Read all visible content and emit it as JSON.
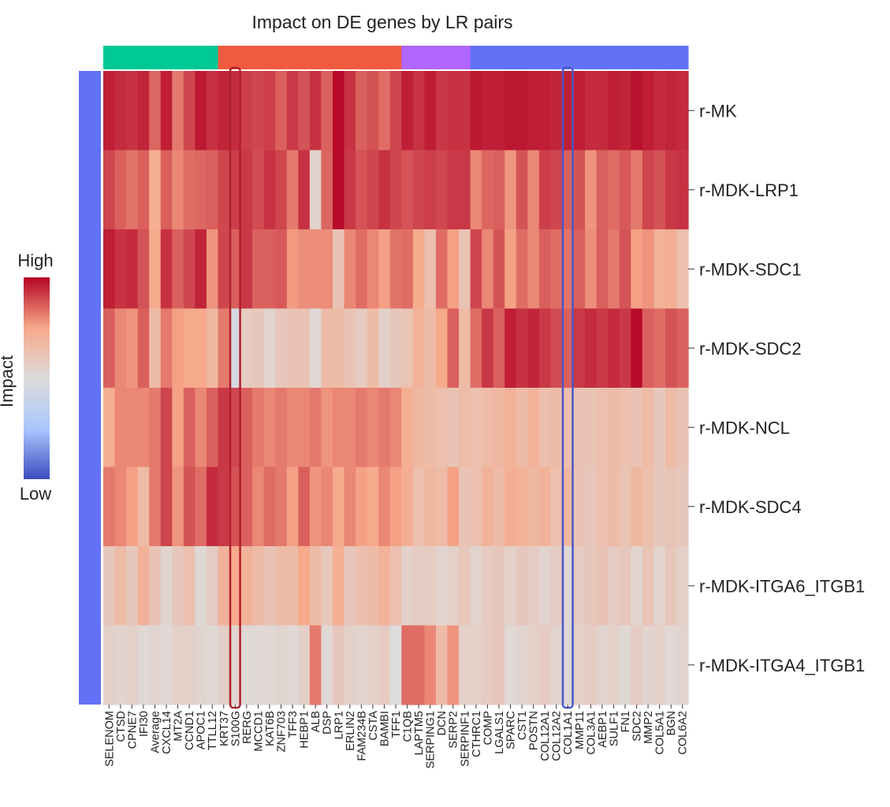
{
  "chart_data": {
    "type": "heatmap",
    "title": "Impact on DE genes by LR pairs",
    "colorbar": {
      "label": "Impact",
      "high_label": "High",
      "low_label": "Low",
      "colors": [
        "#3b4cc0",
        "#aac7fd",
        "#dddcdc",
        "#f7a889",
        "#b40426"
      ]
    },
    "value_range": [
      0,
      1
    ],
    "rows": [
      "r-MK",
      "r-MDK-LRP1",
      "r-MDK-SDC1",
      "r-MDK-SDC2",
      "r-MDK-NCL",
      "r-MDK-SDC4",
      "r-MDK-ITGA6_ITGB1",
      "r-MDK-ITGA4_ITGB1"
    ],
    "row_group_color": "#6272f7",
    "columns": [
      "SELENOM",
      "CTSD",
      "CPNE7",
      "IFI30",
      "Average",
      "CXCL14",
      "MT2A",
      "CCND1",
      "APOC1",
      "TTLL12",
      "KRT37",
      "S100G",
      "RERG",
      "MCCD1",
      "KAT6B",
      "ZNF703",
      "TFF3",
      "HEBP1",
      "ALB",
      "DSP",
      "LRP1",
      "ERLIN2",
      "FAM234B",
      "CSTA",
      "BAMBI",
      "TFF1",
      "C1QB",
      "LAPTM5",
      "SERPING1",
      "DCN",
      "SERP2",
      "SERPINF1",
      "CTHRC1",
      "COMP",
      "LGALS1",
      "SPARC",
      "CST1",
      "POSTN",
      "COL12A1",
      "COL12A2",
      "COL1A1",
      "MMP11",
      "COL3A1",
      "AEBP1",
      "SULF1",
      "FN1",
      "SDC2",
      "MMP2",
      "COL5A1",
      "BGN",
      "COL6A2"
    ],
    "column_groups": [
      {
        "color": "#00c896",
        "start": 0,
        "count": 10
      },
      {
        "color": "#f05b3f",
        "start": 10,
        "count": 16
      },
      {
        "color": "#b066ff",
        "start": 26,
        "count": 6
      },
      {
        "color": "#6272f7",
        "start": 32,
        "count": 19
      }
    ],
    "highlights": [
      {
        "column": "S100G",
        "color": "#b0202a"
      },
      {
        "column": "COL1A1",
        "color": "#4a56c8"
      }
    ],
    "values": [
      [
        0.96,
        0.94,
        0.93,
        0.95,
        0.85,
        0.96,
        0.82,
        0.9,
        0.97,
        0.93,
        0.95,
        0.94,
        0.91,
        0.9,
        0.91,
        0.86,
        0.92,
        0.88,
        0.93,
        0.86,
        0.99,
        0.93,
        0.86,
        0.88,
        0.84,
        0.9,
        0.96,
        0.93,
        0.96,
        0.92,
        0.93,
        0.93,
        0.97,
        0.96,
        0.96,
        0.97,
        0.97,
        0.96,
        0.96,
        0.95,
        0.96,
        0.96,
        0.94,
        0.94,
        0.96,
        0.95,
        0.98,
        0.96,
        0.94,
        0.95,
        0.94
      ],
      [
        0.9,
        0.86,
        0.83,
        0.86,
        0.72,
        0.86,
        0.8,
        0.84,
        0.85,
        0.86,
        0.9,
        0.91,
        0.92,
        0.89,
        0.93,
        0.9,
        0.82,
        0.93,
        0.55,
        0.85,
        0.99,
        0.92,
        0.88,
        0.9,
        0.93,
        0.9,
        0.88,
        0.9,
        0.91,
        0.9,
        0.92,
        0.92,
        0.8,
        0.85,
        0.86,
        0.78,
        0.88,
        0.8,
        0.91,
        0.9,
        0.86,
        0.88,
        0.78,
        0.86,
        0.84,
        0.87,
        0.82,
        0.9,
        0.88,
        0.92,
        0.93
      ],
      [
        0.96,
        0.93,
        0.94,
        0.88,
        0.74,
        0.93,
        0.86,
        0.9,
        0.95,
        0.78,
        0.9,
        0.86,
        0.92,
        0.86,
        0.86,
        0.87,
        0.77,
        0.79,
        0.79,
        0.79,
        0.62,
        0.8,
        0.84,
        0.8,
        0.76,
        0.83,
        0.84,
        0.74,
        0.64,
        0.84,
        0.76,
        0.62,
        0.9,
        0.8,
        0.88,
        0.76,
        0.84,
        0.8,
        0.86,
        0.84,
        0.83,
        0.86,
        0.79,
        0.86,
        0.82,
        0.88,
        0.76,
        0.78,
        0.7,
        0.72,
        0.64
      ],
      [
        0.86,
        0.8,
        0.78,
        0.86,
        0.66,
        0.82,
        0.76,
        0.74,
        0.74,
        0.68,
        0.82,
        0.46,
        0.58,
        0.6,
        0.54,
        0.6,
        0.62,
        0.62,
        0.52,
        0.66,
        0.66,
        0.62,
        0.58,
        0.66,
        0.56,
        0.6,
        0.62,
        0.7,
        0.66,
        0.74,
        0.86,
        0.66,
        0.84,
        0.92,
        0.86,
        0.96,
        0.93,
        0.95,
        0.92,
        0.89,
        0.86,
        0.92,
        0.94,
        0.92,
        0.94,
        0.92,
        0.99,
        0.86,
        0.84,
        0.88,
        0.86
      ],
      [
        0.72,
        0.8,
        0.8,
        0.8,
        0.82,
        0.9,
        0.76,
        0.86,
        0.8,
        0.86,
        0.92,
        0.9,
        0.86,
        0.82,
        0.8,
        0.82,
        0.8,
        0.8,
        0.82,
        0.78,
        0.8,
        0.8,
        0.82,
        0.8,
        0.82,
        0.8,
        0.72,
        0.68,
        0.66,
        0.64,
        0.62,
        0.66,
        0.64,
        0.66,
        0.68,
        0.7,
        0.66,
        0.7,
        0.64,
        0.66,
        0.64,
        0.62,
        0.62,
        0.64,
        0.66,
        0.64,
        0.62,
        0.66,
        0.6,
        0.66,
        0.62
      ],
      [
        0.82,
        0.8,
        0.76,
        0.66,
        0.82,
        0.9,
        0.78,
        0.88,
        0.84,
        0.94,
        0.92,
        0.88,
        0.86,
        0.8,
        0.84,
        0.82,
        0.76,
        0.86,
        0.78,
        0.8,
        0.74,
        0.8,
        0.76,
        0.74,
        0.8,
        0.76,
        0.72,
        0.64,
        0.68,
        0.66,
        0.76,
        0.62,
        0.64,
        0.7,
        0.66,
        0.72,
        0.7,
        0.68,
        0.7,
        0.64,
        0.68,
        0.62,
        0.6,
        0.64,
        0.66,
        0.62,
        0.68,
        0.64,
        0.6,
        0.62,
        0.6
      ],
      [
        0.6,
        0.66,
        0.6,
        0.7,
        0.62,
        0.54,
        0.6,
        0.64,
        0.52,
        0.58,
        0.7,
        0.74,
        0.7,
        0.66,
        0.62,
        0.66,
        0.66,
        0.74,
        0.66,
        0.6,
        0.72,
        0.6,
        0.64,
        0.66,
        0.7,
        0.64,
        0.56,
        0.58,
        0.58,
        0.54,
        0.56,
        0.6,
        0.54,
        0.58,
        0.6,
        0.56,
        0.6,
        0.58,
        0.54,
        0.58,
        0.52,
        0.58,
        0.6,
        0.62,
        0.58,
        0.6,
        0.54,
        0.62,
        0.54,
        0.6,
        0.56
      ],
      [
        0.56,
        0.54,
        0.56,
        0.52,
        0.54,
        0.52,
        0.56,
        0.56,
        0.54,
        0.52,
        0.56,
        0.54,
        0.52,
        0.52,
        0.52,
        0.54,
        0.52,
        0.56,
        0.82,
        0.52,
        0.6,
        0.56,
        0.54,
        0.56,
        0.58,
        0.5,
        0.84,
        0.84,
        0.8,
        0.66,
        0.78,
        0.56,
        0.56,
        0.58,
        0.6,
        0.52,
        0.54,
        0.56,
        0.58,
        0.54,
        0.52,
        0.56,
        0.58,
        0.54,
        0.56,
        0.52,
        0.58,
        0.54,
        0.56,
        0.52,
        0.54
      ]
    ]
  }
}
